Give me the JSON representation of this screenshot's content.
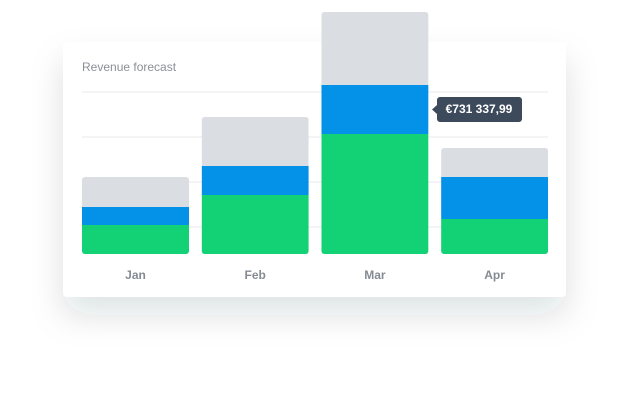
{
  "chart_data": {
    "type": "stacked-bar",
    "title": "Revenue forecast",
    "categories": [
      "Jan",
      "Feb",
      "Mar",
      "Apr"
    ],
    "series": [
      {
        "color": "#13d175",
        "values": [
          29,
          59,
          120,
          35
        ]
      },
      {
        "color": "#0491e8",
        "values": [
          18,
          29,
          49,
          42
        ]
      },
      {
        "color": "#dadee3",
        "values": [
          30,
          49,
          73,
          29
        ]
      }
    ],
    "ylim": [
      0,
      242
    ],
    "annotation": "€731 337,99"
  }
}
